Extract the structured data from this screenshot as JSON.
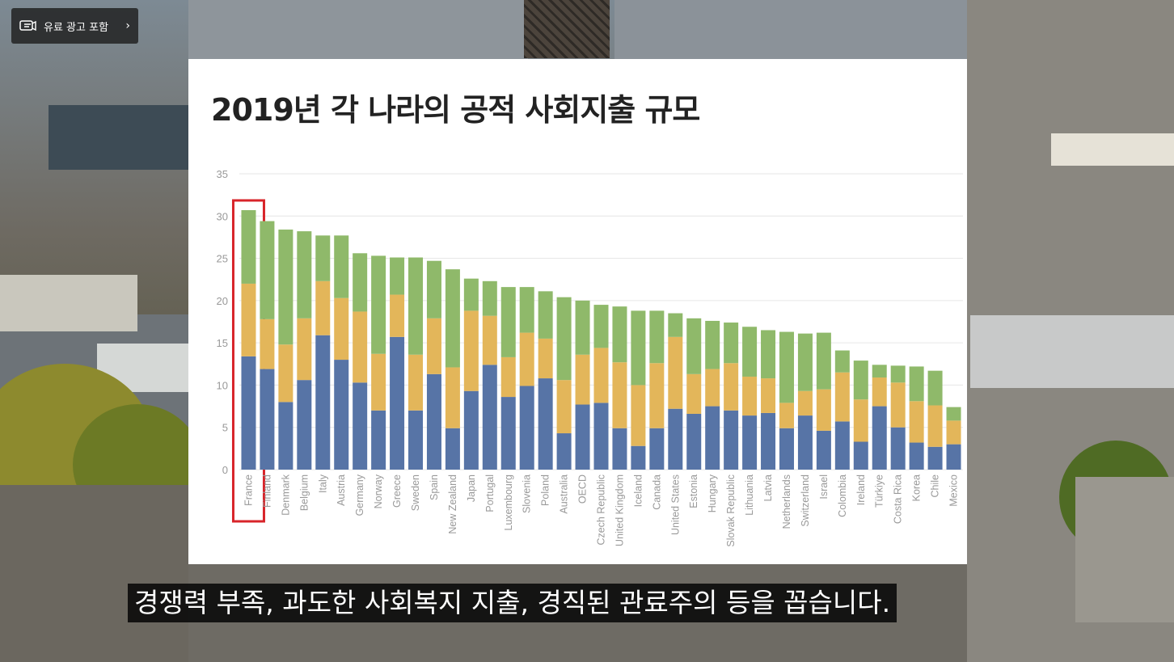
{
  "ad_badge": {
    "label": "유료 광고 포함",
    "icon": "paid-ad-icon"
  },
  "slide": {
    "title": "2019년 각 나라의 공적 사회지출 규모"
  },
  "subtitle": {
    "text": "경쟁력 부족, 과도한 사회복지 지출, 경직된 관료주의 등을 꼽습니다."
  },
  "colors": {
    "series1": "#5774a6",
    "series2": "#e3b65a",
    "series3": "#8fb96a",
    "highlight": "#d8242a"
  },
  "chart_data": {
    "type": "bar",
    "stacked": true,
    "title": "",
    "xlabel": "",
    "ylabel": "",
    "ylim": [
      0,
      35
    ],
    "yticks": [
      0,
      5,
      10,
      15,
      20,
      25,
      30,
      35
    ],
    "grid": true,
    "highlighted_category": "France",
    "categories": [
      "France",
      "Finland",
      "Denmark",
      "Belgium",
      "Italy",
      "Austria",
      "Germany",
      "Norway",
      "Greece",
      "Sweden",
      "Spain",
      "New Zealand",
      "Japan",
      "Portugal",
      "Luxembourg",
      "Slovenia",
      "Poland",
      "Australia",
      "OECD",
      "Czech Republic",
      "United Kingdom",
      "Iceland",
      "Canada",
      "United States",
      "Estonia",
      "Hungary",
      "Slovak Republic",
      "Lithuania",
      "Latvia",
      "Netherlands",
      "Switzerland",
      "Israel",
      "Colombia",
      "Ireland",
      "Türkiye",
      "Costa Rica",
      "Korea",
      "Chile",
      "Mexico"
    ],
    "series": [
      {
        "values": [
          13.4,
          11.9,
          8.0,
          10.6,
          15.9,
          13.0,
          10.3,
          7.0,
          15.7,
          7.0,
          11.3,
          4.9,
          9.3,
          12.4,
          8.6,
          9.9,
          10.8,
          4.3,
          7.7,
          7.9,
          4.9,
          2.8,
          4.9,
          7.2,
          6.6,
          7.5,
          7.0,
          6.4,
          6.7,
          4.9,
          6.4,
          4.6,
          5.7,
          3.3,
          7.5,
          5.0,
          3.2,
          2.7,
          3.0
        ]
      },
      {
        "values": [
          8.6,
          5.9,
          6.8,
          7.3,
          6.4,
          7.3,
          8.4,
          6.7,
          5.0,
          6.6,
          6.6,
          7.2,
          9.5,
          5.8,
          4.7,
          6.3,
          4.7,
          6.3,
          5.9,
          6.5,
          7.8,
          7.2,
          7.7,
          8.5,
          4.7,
          4.4,
          5.6,
          4.6,
          4.1,
          3.0,
          2.9,
          4.9,
          5.8,
          5.0,
          3.4,
          5.3,
          4.9,
          4.9,
          2.8
        ]
      },
      {
        "values": [
          8.7,
          11.6,
          13.6,
          10.3,
          5.4,
          7.4,
          6.9,
          11.6,
          4.4,
          11.5,
          6.8,
          11.6,
          3.8,
          4.1,
          8.3,
          5.4,
          5.6,
          9.8,
          6.4,
          5.1,
          6.6,
          8.8,
          6.2,
          2.8,
          6.6,
          5.7,
          4.8,
          5.9,
          5.7,
          8.4,
          6.8,
          6.7,
          2.6,
          4.6,
          1.5,
          2.0,
          4.1,
          4.1,
          1.6
        ]
      }
    ]
  }
}
